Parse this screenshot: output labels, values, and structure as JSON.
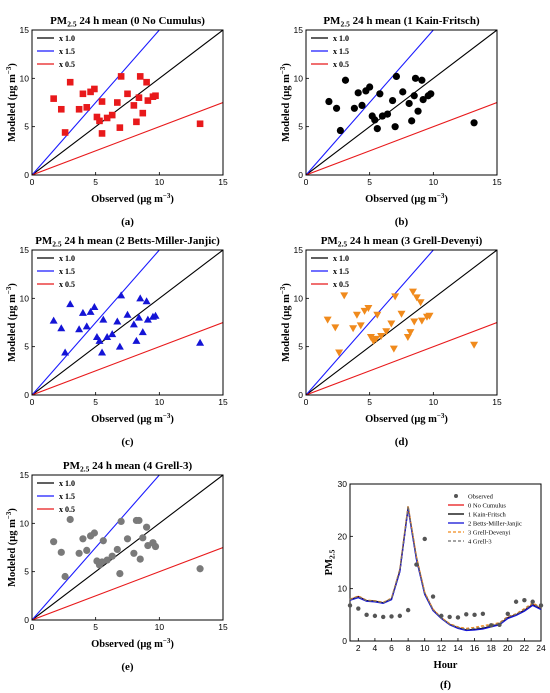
{
  "panels_scatter": [
    {
      "id": "a",
      "title_main": "PM",
      "title_sub": "2.5",
      "title_rest": " 24 h mean (0 No Cumulus)",
      "panel_label": "(a)",
      "xlabel": "Observed (μg m",
      "ylabel": "Modeled (μg m",
      "unit_exp": "−3",
      "marker": "square",
      "color": "#e8191b",
      "legend": [
        "x 1.0",
        "x 1.5",
        "x 0.5"
      ],
      "legend_colors": [
        "#000000",
        "#1a1aff",
        "#e8191b"
      ]
    },
    {
      "id": "b",
      "title_main": "PM",
      "title_sub": "2.5",
      "title_rest": " 24 h mean (1 Kain-Fritsch)",
      "panel_label": "(b)",
      "xlabel": "Observed (μg m",
      "ylabel": "Modeled (μg m",
      "unit_exp": "−3",
      "marker": "circle",
      "color": "#000000",
      "legend": [
        "x 1.0",
        "x 1.5",
        "x 0.5"
      ],
      "legend_colors": [
        "#000000",
        "#1a1aff",
        "#e8191b"
      ]
    },
    {
      "id": "c",
      "title_main": "PM",
      "title_sub": "2.5",
      "title_rest": " 24 h mean (2 Betts-Miller-Janjic)",
      "panel_label": "(c)",
      "xlabel": "Observed (μg m",
      "ylabel": "Modeled (μg m",
      "unit_exp": "−3",
      "marker": "triangle-up",
      "color": "#1414d6",
      "legend": [
        "x 1.0",
        "x 1.5",
        "x 0.5"
      ],
      "legend_colors": [
        "#000000",
        "#1a1aff",
        "#e8191b"
      ]
    },
    {
      "id": "d",
      "title_main": "PM",
      "title_sub": "2.5",
      "title_rest": " 24 h mean (3 Grell-Devenyi)",
      "panel_label": "(d)",
      "xlabel": "Observed (μg m",
      "ylabel": "Modeled (μg m",
      "unit_exp": "−3",
      "marker": "triangle-down",
      "color": "#f08a1c",
      "legend": [
        "x 1.0",
        "x 1.5",
        "x 0.5"
      ],
      "legend_colors": [
        "#000000",
        "#1a1aff",
        "#e8191b"
      ]
    },
    {
      "id": "e",
      "title_main": "PM",
      "title_sub": "2.5",
      "title_rest": " 24 h mean (4 Grell-3)",
      "panel_label": "(e)",
      "xlabel": "Observed (μg m",
      "ylabel": "Modeled (μg m",
      "unit_exp": "−3",
      "marker": "circle",
      "color": "#7a7a7a",
      "legend": [
        "x 1.0",
        "x 1.5",
        "x 0.5"
      ],
      "legend_colors": [
        "#000000",
        "#1a1aff",
        "#e8191b"
      ]
    }
  ],
  "panel_f": {
    "panel_label": "(f)",
    "xlabel": "Hour",
    "ylabel_main": "PM",
    "ylabel_sub": "2.5",
    "legend": [
      "Observed",
      "0 No Cumulus",
      "1 Kain-Fritsch",
      "2 Betts-Miller-Janjic",
      "3 Grell-Devenyi",
      "4 Grell-3"
    ]
  },
  "chart_data": [
    {
      "type": "scatter",
      "panel": "a",
      "xlim": [
        0,
        15
      ],
      "ylim": [
        0,
        15
      ],
      "xticks": [
        0,
        5,
        10,
        15
      ],
      "yticks": [
        0,
        5,
        10,
        15
      ],
      "reference_lines": [
        {
          "name": "x 1.0",
          "slope": 1.0
        },
        {
          "name": "x 1.5",
          "slope": 1.5
        },
        {
          "name": "x 0.5",
          "slope": 0.5
        }
      ],
      "points": [
        [
          1.7,
          7.9
        ],
        [
          2.3,
          6.8
        ],
        [
          2.6,
          4.4
        ],
        [
          3.0,
          9.6
        ],
        [
          3.7,
          6.8
        ],
        [
          4.0,
          8.4
        ],
        [
          4.3,
          7.0
        ],
        [
          4.6,
          8.6
        ],
        [
          4.9,
          8.9
        ],
        [
          5.1,
          6.0
        ],
        [
          5.3,
          5.6
        ],
        [
          5.5,
          4.3
        ],
        [
          5.5,
          7.6
        ],
        [
          5.9,
          5.9
        ],
        [
          6.3,
          6.2
        ],
        [
          6.7,
          7.5
        ],
        [
          6.9,
          4.9
        ],
        [
          7.0,
          10.2
        ],
        [
          7.5,
          8.4
        ],
        [
          8.0,
          7.2
        ],
        [
          8.2,
          5.5
        ],
        [
          8.4,
          8.0
        ],
        [
          8.5,
          10.2
        ],
        [
          8.7,
          6.4
        ],
        [
          9.0,
          9.6
        ],
        [
          9.1,
          7.7
        ],
        [
          9.5,
          8.1
        ],
        [
          9.7,
          8.2
        ],
        [
          13.2,
          5.3
        ]
      ]
    },
    {
      "type": "scatter",
      "panel": "b",
      "xlim": [
        0,
        15
      ],
      "ylim": [
        0,
        15
      ],
      "xticks": [
        0,
        5,
        10,
        15
      ],
      "yticks": [
        0,
        5,
        10,
        15
      ],
      "reference_lines": [
        {
          "name": "x 1.0",
          "slope": 1.0
        },
        {
          "name": "x 1.5",
          "slope": 1.5
        },
        {
          "name": "x 0.5",
          "slope": 0.5
        }
      ],
      "points": [
        [
          1.8,
          7.6
        ],
        [
          2.4,
          6.9
        ],
        [
          2.7,
          4.6
        ],
        [
          3.1,
          9.8
        ],
        [
          3.8,
          6.9
        ],
        [
          4.1,
          8.5
        ],
        [
          4.4,
          7.2
        ],
        [
          4.7,
          8.7
        ],
        [
          5.0,
          9.1
        ],
        [
          5.2,
          6.1
        ],
        [
          5.4,
          5.7
        ],
        [
          5.6,
          4.8
        ],
        [
          5.8,
          8.4
        ],
        [
          6.0,
          6.1
        ],
        [
          6.4,
          6.3
        ],
        [
          6.8,
          7.7
        ],
        [
          7.0,
          5.0
        ],
        [
          7.1,
          10.2
        ],
        [
          7.6,
          8.6
        ],
        [
          8.1,
          7.4
        ],
        [
          8.3,
          5.6
        ],
        [
          8.5,
          8.2
        ],
        [
          8.6,
          10.0
        ],
        [
          8.8,
          6.6
        ],
        [
          9.1,
          9.8
        ],
        [
          9.2,
          7.8
        ],
        [
          9.6,
          8.2
        ],
        [
          9.8,
          8.4
        ],
        [
          13.2,
          5.4
        ]
      ]
    },
    {
      "type": "scatter",
      "panel": "c",
      "xlim": [
        0,
        15
      ],
      "ylim": [
        0,
        15
      ],
      "xticks": [
        0,
        5,
        10,
        15
      ],
      "yticks": [
        0,
        5,
        10,
        15
      ],
      "reference_lines": [
        {
          "name": "x 1.0",
          "slope": 1.0
        },
        {
          "name": "x 1.5",
          "slope": 1.5
        },
        {
          "name": "x 0.5",
          "slope": 0.5
        }
      ],
      "points": [
        [
          1.7,
          7.7
        ],
        [
          2.3,
          6.9
        ],
        [
          2.6,
          4.4
        ],
        [
          3.0,
          9.4
        ],
        [
          3.7,
          6.8
        ],
        [
          4.0,
          8.5
        ],
        [
          4.3,
          7.1
        ],
        [
          4.6,
          8.6
        ],
        [
          4.9,
          9.1
        ],
        [
          5.1,
          6.0
        ],
        [
          5.3,
          5.6
        ],
        [
          5.5,
          4.4
        ],
        [
          5.6,
          7.8
        ],
        [
          5.9,
          6.0
        ],
        [
          6.3,
          6.3
        ],
        [
          6.7,
          7.6
        ],
        [
          6.9,
          5.0
        ],
        [
          7.0,
          10.3
        ],
        [
          7.5,
          8.3
        ],
        [
          8.0,
          7.3
        ],
        [
          8.2,
          5.6
        ],
        [
          8.4,
          8.0
        ],
        [
          8.5,
          10.0
        ],
        [
          8.7,
          6.5
        ],
        [
          9.0,
          9.7
        ],
        [
          9.1,
          7.8
        ],
        [
          9.5,
          8.1
        ],
        [
          9.7,
          8.2
        ],
        [
          13.2,
          5.4
        ]
      ]
    },
    {
      "type": "scatter",
      "panel": "d",
      "xlim": [
        0,
        15
      ],
      "ylim": [
        0,
        15
      ],
      "xticks": [
        0,
        5,
        10,
        15
      ],
      "yticks": [
        0,
        5,
        10,
        15
      ],
      "reference_lines": [
        {
          "name": "x 1.0",
          "slope": 1.0
        },
        {
          "name": "x 1.5",
          "slope": 1.5
        },
        {
          "name": "x 0.5",
          "slope": 0.5
        }
      ],
      "points": [
        [
          1.7,
          7.8
        ],
        [
          2.3,
          7.0
        ],
        [
          2.6,
          4.4
        ],
        [
          3.0,
          10.3
        ],
        [
          3.7,
          6.9
        ],
        [
          4.0,
          8.3
        ],
        [
          4.3,
          7.2
        ],
        [
          4.6,
          8.7
        ],
        [
          4.9,
          9.0
        ],
        [
          5.1,
          6.0
        ],
        [
          5.3,
          5.6
        ],
        [
          5.5,
          5.8
        ],
        [
          5.6,
          8.3
        ],
        [
          5.9,
          6.1
        ],
        [
          6.3,
          6.6
        ],
        [
          6.7,
          7.4
        ],
        [
          6.9,
          4.8
        ],
        [
          7.0,
          10.2
        ],
        [
          7.5,
          8.4
        ],
        [
          8.0,
          6.0
        ],
        [
          8.2,
          6.5
        ],
        [
          8.4,
          10.7
        ],
        [
          8.5,
          7.6
        ],
        [
          8.7,
          10.1
        ],
        [
          9.0,
          9.6
        ],
        [
          9.1,
          7.7
        ],
        [
          9.5,
          8.1
        ],
        [
          9.7,
          8.2
        ],
        [
          13.2,
          5.2
        ]
      ]
    },
    {
      "type": "scatter",
      "panel": "e",
      "xlim": [
        0,
        15
      ],
      "ylim": [
        0,
        15
      ],
      "xticks": [
        0,
        5,
        10,
        15
      ],
      "yticks": [
        0,
        5,
        10,
        15
      ],
      "reference_lines": [
        {
          "name": "x 1.0",
          "slope": 1.0
        },
        {
          "name": "x 1.5",
          "slope": 1.5
        },
        {
          "name": "x 0.5",
          "slope": 0.5
        }
      ],
      "points": [
        [
          1.7,
          8.1
        ],
        [
          2.3,
          7.0
        ],
        [
          2.6,
          4.5
        ],
        [
          3.0,
          10.4
        ],
        [
          3.7,
          6.9
        ],
        [
          4.0,
          8.4
        ],
        [
          4.3,
          7.2
        ],
        [
          4.6,
          8.7
        ],
        [
          4.9,
          9.0
        ],
        [
          5.1,
          6.1
        ],
        [
          5.3,
          5.7
        ],
        [
          5.5,
          6.0
        ],
        [
          5.6,
          8.2
        ],
        [
          5.9,
          6.2
        ],
        [
          6.3,
          6.6
        ],
        [
          6.7,
          7.3
        ],
        [
          6.9,
          4.8
        ],
        [
          7.0,
          10.2
        ],
        [
          7.5,
          8.4
        ],
        [
          8.0,
          6.9
        ],
        [
          8.2,
          10.3
        ],
        [
          8.4,
          10.3
        ],
        [
          8.5,
          6.3
        ],
        [
          8.7,
          8.5
        ],
        [
          9.0,
          9.6
        ],
        [
          9.1,
          7.7
        ],
        [
          9.5,
          8.0
        ],
        [
          9.7,
          7.6
        ],
        [
          13.2,
          5.3
        ]
      ]
    },
    {
      "type": "line",
      "panel": "f",
      "xlim": [
        1,
        24
      ],
      "ylim": [
        0,
        30
      ],
      "xticks": [
        2,
        4,
        6,
        8,
        10,
        12,
        14,
        16,
        18,
        20,
        22,
        24
      ],
      "yticks": [
        0,
        10,
        20,
        30
      ],
      "x": [
        1,
        2,
        3,
        4,
        5,
        6,
        7,
        8,
        9,
        10,
        11,
        12,
        13,
        14,
        15,
        16,
        17,
        18,
        19,
        20,
        21,
        22,
        23,
        24
      ],
      "observed": [
        6.8,
        6.2,
        5.0,
        4.8,
        4.6,
        4.7,
        4.8,
        5.9,
        14.6,
        19.5,
        8.5,
        4.8,
        4.6,
        4.5,
        5.1,
        5.0,
        5.2,
        3.0,
        3.1,
        5.2,
        7.5,
        7.8,
        7.5,
        6.8
      ],
      "series": [
        {
          "name": "0 No Cumulus",
          "color": "#e8191b",
          "dash": "solid",
          "values": [
            7.9,
            8.5,
            7.7,
            7.6,
            7.3,
            8.0,
            13.5,
            25.6,
            16.0,
            9.2,
            6.0,
            4.4,
            3.2,
            2.5,
            2.1,
            2.2,
            2.4,
            2.8,
            3.2,
            4.5,
            5.0,
            5.9,
            7.0,
            6.2
          ]
        },
        {
          "name": "1 Kain-Fritsch",
          "color": "#000000",
          "dash": "solid",
          "values": [
            7.9,
            8.4,
            7.7,
            7.6,
            7.3,
            8.0,
            13.3,
            25.5,
            15.8,
            9.0,
            5.9,
            4.4,
            3.2,
            2.5,
            2.1,
            2.2,
            2.4,
            2.8,
            3.2,
            4.4,
            5.0,
            5.8,
            6.9,
            6.1
          ]
        },
        {
          "name": "2 Betts-Miller-Janjic",
          "color": "#1414d6",
          "dash": "solid",
          "values": [
            7.8,
            8.3,
            7.6,
            7.5,
            7.2,
            7.9,
            13.2,
            25.3,
            15.6,
            8.9,
            5.8,
            4.3,
            3.1,
            2.4,
            2.0,
            2.1,
            2.3,
            2.7,
            3.1,
            4.3,
            4.9,
            5.7,
            6.8,
            6.0
          ]
        },
        {
          "name": "3 Grell-Devenyi",
          "color": "#f08a1c",
          "dash": "dashed",
          "values": [
            8.0,
            8.6,
            7.8,
            7.7,
            7.4,
            8.2,
            13.7,
            25.9,
            16.2,
            9.3,
            6.1,
            4.5,
            3.3,
            2.7,
            2.4,
            2.6,
            2.9,
            3.2,
            3.5,
            4.7,
            5.2,
            6.2,
            7.3,
            6.4
          ]
        },
        {
          "name": "4 Grell-3",
          "color": "#6e6e6e",
          "dash": "dashed",
          "values": [
            7.9,
            8.5,
            7.7,
            7.6,
            7.3,
            8.1,
            13.6,
            25.7,
            16.1,
            9.2,
            6.0,
            4.4,
            3.2,
            2.6,
            2.2,
            2.4,
            2.6,
            3.0,
            3.3,
            4.6,
            5.1,
            6.0,
            7.1,
            6.3
          ]
        }
      ]
    }
  ]
}
